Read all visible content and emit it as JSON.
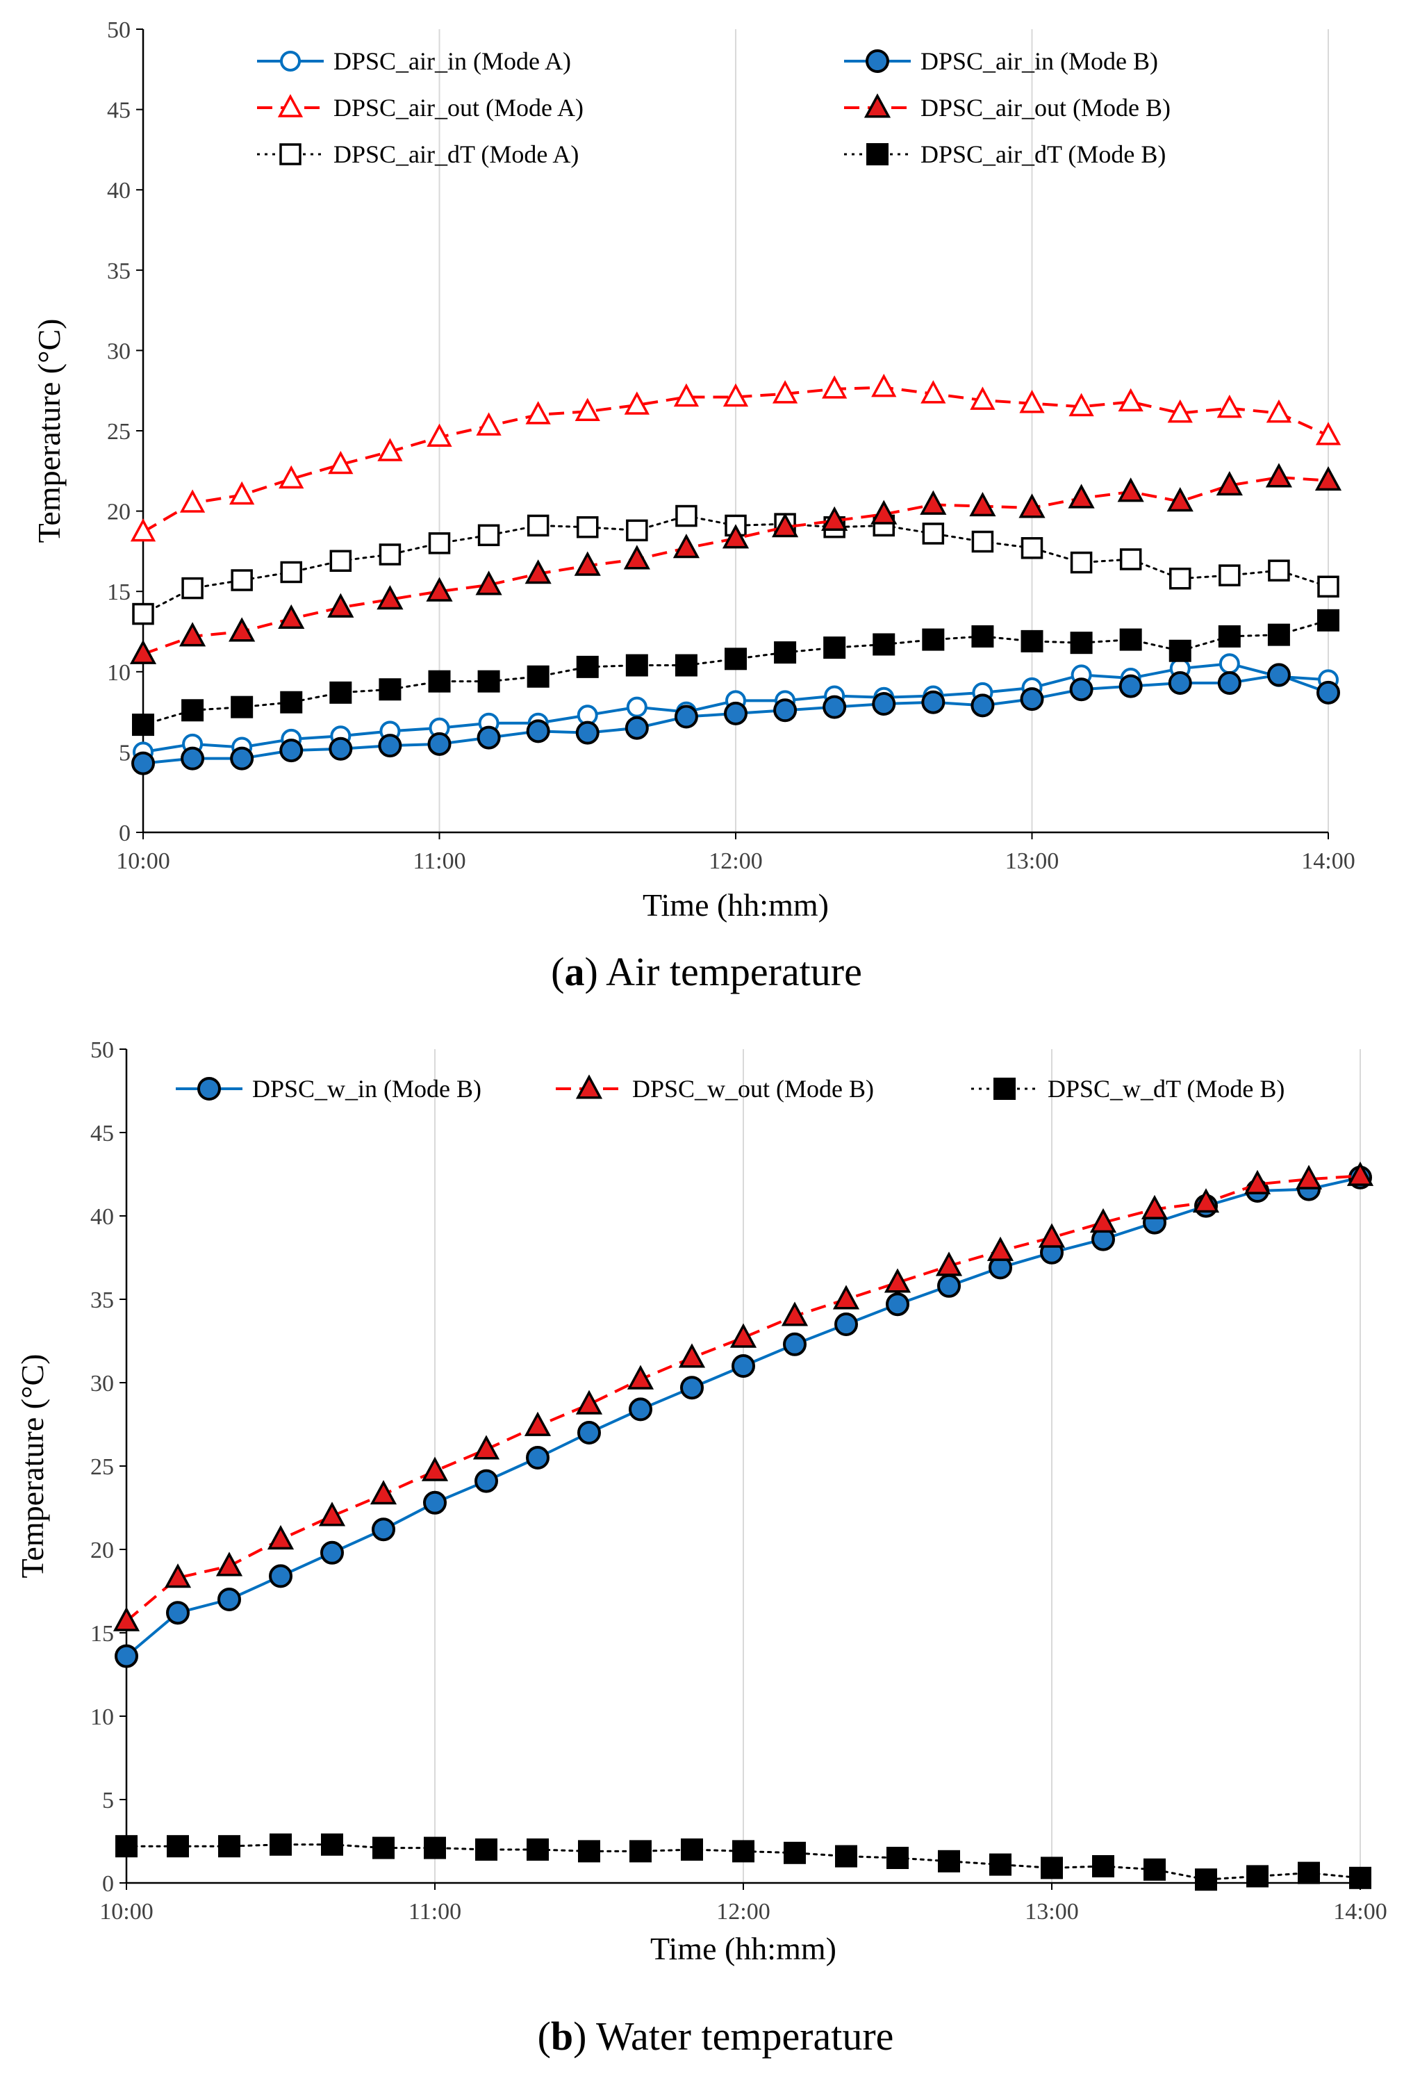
{
  "chart_data": [
    {
      "id": "a",
      "type": "line",
      "caption_letter": "a",
      "caption_text": "Air temperature",
      "xlabel": "Time (hh:mm)",
      "ylabel": "Temperature (°C)",
      "xlim": [
        0,
        240
      ],
      "ylim": [
        0,
        50
      ],
      "yticks": [
        0,
        5,
        10,
        15,
        20,
        25,
        30,
        35,
        40,
        45,
        50
      ],
      "xticks": [
        0,
        60,
        120,
        180,
        240
      ],
      "xtick_labels": [
        "10:00",
        "11:00",
        "12:00",
        "13:00",
        "14:00"
      ],
      "x": [
        0,
        10,
        20,
        30,
        40,
        50,
        60,
        70,
        80,
        90,
        100,
        110,
        120,
        130,
        140,
        150,
        160,
        170,
        180,
        190,
        200,
        210,
        220,
        230,
        240
      ],
      "grid": "vertical",
      "legend_position": "top",
      "series": [
        {
          "name": "DPSC_air_in (Mode A)",
          "color": "#0070c0",
          "line_style": "solid",
          "marker": "circle",
          "fill": "open",
          "values": [
            5.0,
            5.5,
            5.3,
            5.8,
            6.0,
            6.3,
            6.5,
            6.8,
            6.8,
            7.3,
            7.8,
            7.5,
            8.2,
            8.2,
            8.5,
            8.4,
            8.5,
            8.7,
            9.0,
            9.8,
            9.6,
            10.2,
            10.5,
            9.7,
            9.5
          ]
        },
        {
          "name": "DPSC_air_out (Mode A)",
          "color": "#ff0000",
          "line_style": "dashed",
          "marker": "triangle",
          "fill": "open",
          "values": [
            18.7,
            20.5,
            21.0,
            22.0,
            22.9,
            23.7,
            24.6,
            25.3,
            26.0,
            26.2,
            26.6,
            27.1,
            27.1,
            27.3,
            27.6,
            27.7,
            27.3,
            26.9,
            26.7,
            26.5,
            26.8,
            26.1,
            26.4,
            26.1,
            24.7
          ]
        },
        {
          "name": "DPSC_air_dT (Mode A)",
          "color": "#000000",
          "line_style": "dotted",
          "marker": "square",
          "fill": "open",
          "values": [
            13.6,
            15.2,
            15.7,
            16.2,
            16.9,
            17.3,
            18.0,
            18.5,
            19.1,
            19.0,
            18.8,
            19.7,
            19.1,
            19.2,
            19.0,
            19.1,
            18.6,
            18.1,
            17.7,
            16.8,
            17.0,
            15.8,
            16.0,
            16.3,
            15.3
          ]
        },
        {
          "name": "DPSC_air_in (Mode B)",
          "color": "#0070c0",
          "line_style": "solid",
          "marker": "circle",
          "fill": "filled",
          "values": [
            4.3,
            4.6,
            4.6,
            5.1,
            5.2,
            5.4,
            5.5,
            5.9,
            6.3,
            6.2,
            6.5,
            7.2,
            7.4,
            7.6,
            7.8,
            8.0,
            8.1,
            7.9,
            8.3,
            8.9,
            9.1,
            9.3,
            9.3,
            9.8,
            8.7
          ]
        },
        {
          "name": "DPSC_air_out (Mode B)",
          "color": "#ff0000",
          "line_style": "dashed",
          "marker": "triangle",
          "fill": "filled",
          "values": [
            11.1,
            12.2,
            12.5,
            13.3,
            14.0,
            14.5,
            15.0,
            15.4,
            16.1,
            16.6,
            17.0,
            17.7,
            18.3,
            19.0,
            19.4,
            19.8,
            20.4,
            20.3,
            20.2,
            20.8,
            21.2,
            20.6,
            21.6,
            22.1,
            21.9
          ]
        },
        {
          "name": "DPSC_air_dT (Mode B)",
          "color": "#000000",
          "line_style": "dotted",
          "marker": "square",
          "fill": "filled",
          "values": [
            6.7,
            7.6,
            7.8,
            8.1,
            8.7,
            8.9,
            9.4,
            9.4,
            9.7,
            10.3,
            10.4,
            10.4,
            10.8,
            11.2,
            11.5,
            11.7,
            12.0,
            12.2,
            11.9,
            11.8,
            12.0,
            11.3,
            12.2,
            12.3,
            13.2
          ]
        }
      ]
    },
    {
      "id": "b",
      "type": "line",
      "caption_letter": "b",
      "caption_text": "Water temperature",
      "xlabel": "Time (hh:mm)",
      "ylabel": "Temperature (°C)",
      "xlim": [
        0,
        240
      ],
      "ylim": [
        0,
        50
      ],
      "yticks": [
        0,
        5,
        10,
        15,
        20,
        25,
        30,
        35,
        40,
        45,
        50
      ],
      "xticks": [
        0,
        60,
        120,
        180,
        240
      ],
      "xtick_labels": [
        "10:00",
        "11:00",
        "12:00",
        "13:00",
        "14:00"
      ],
      "x": [
        0,
        10,
        20,
        30,
        40,
        50,
        60,
        70,
        80,
        90,
        100,
        110,
        120,
        130,
        140,
        150,
        160,
        170,
        180,
        190,
        200,
        210,
        220,
        230,
        240
      ],
      "grid": "vertical",
      "legend_position": "top",
      "series": [
        {
          "name": "DPSC_w_in (Mode B)",
          "color": "#0070c0",
          "line_style": "solid",
          "marker": "circle",
          "fill": "filled",
          "values": [
            13.6,
            16.2,
            17.0,
            18.4,
            19.8,
            21.2,
            22.8,
            24.1,
            25.5,
            27.0,
            28.4,
            29.7,
            31.0,
            32.3,
            33.5,
            34.7,
            35.8,
            36.9,
            37.8,
            38.6,
            39.6,
            40.6,
            41.5,
            41.6,
            42.3
          ]
        },
        {
          "name": "DPSC_w_out (Mode B)",
          "color": "#ff0000",
          "line_style": "dashed",
          "marker": "triangle",
          "fill": "filled",
          "values": [
            15.7,
            18.3,
            19.0,
            20.6,
            22.0,
            23.3,
            24.7,
            26.0,
            27.4,
            28.7,
            30.2,
            31.5,
            32.7,
            34.0,
            35.0,
            36.0,
            37.0,
            37.9,
            38.7,
            39.6,
            40.4,
            40.8,
            41.9,
            42.2,
            42.4
          ]
        },
        {
          "name": "DPSC_w_dT (Mode B)",
          "color": "#000000",
          "line_style": "dotted",
          "marker": "square",
          "fill": "filled",
          "values": [
            2.2,
            2.2,
            2.2,
            2.3,
            2.3,
            2.1,
            2.1,
            2.0,
            2.0,
            1.9,
            1.9,
            2.0,
            1.9,
            1.8,
            1.6,
            1.5,
            1.3,
            1.1,
            0.9,
            1.0,
            0.8,
            0.2,
            0.4,
            0.6,
            0.3
          ]
        }
      ]
    }
  ]
}
